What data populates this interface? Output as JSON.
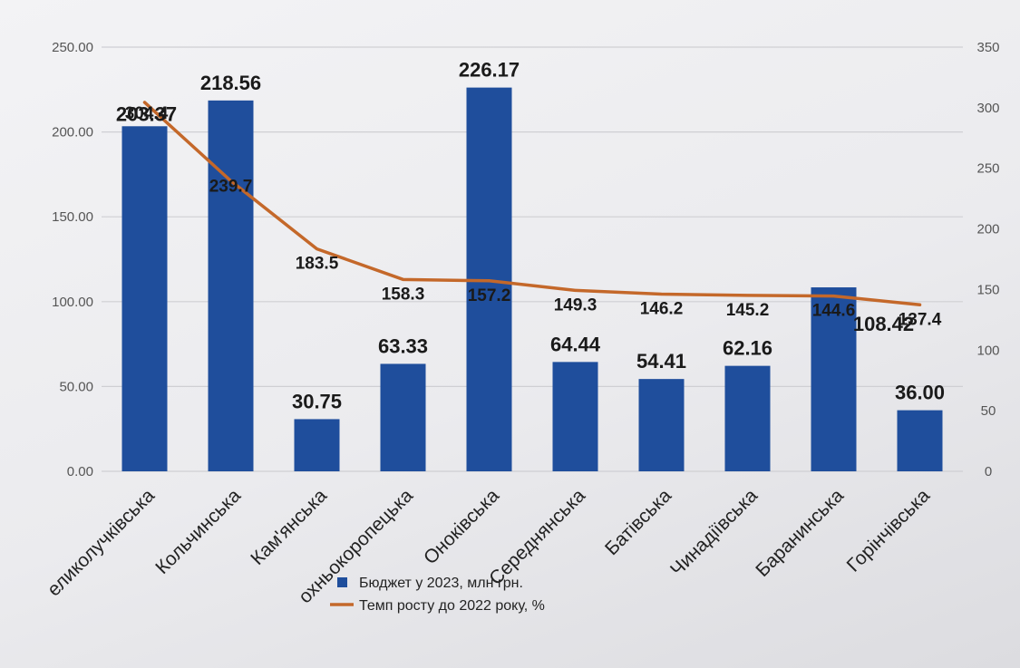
{
  "chart_data": {
    "type": "bar",
    "categories": [
      "Великолучківська",
      "Кольчинська",
      "Кам'янська",
      "Верхньокоропецька",
      "Оноківська",
      "Середнянська",
      "Батівська",
      "Чинадіївська",
      "Баранинська",
      "Горінчівська"
    ],
    "category_labels_shown": [
      "еликолучківська",
      "Кольчинська",
      "Кам'янська",
      "охньокоропецька",
      "Оноківська",
      "Середнянська",
      "Батівська",
      "Чинадіївська",
      "Баранинська",
      "Горінчівська"
    ],
    "series": [
      {
        "name": "Бюджет у 2023, млн грн.",
        "type": "bar",
        "axis": "left",
        "values": [
          203.37,
          218.56,
          30.75,
          63.33,
          226.17,
          64.44,
          54.41,
          62.16,
          108.42,
          36.0
        ],
        "value_labels": [
          "203.37",
          "218.56",
          "30.75",
          "63.33",
          "226.17",
          "64.44",
          "54.41",
          "62.16",
          "108.42",
          "36.00"
        ],
        "color": "#1f4e9c"
      },
      {
        "name": "Темп росту до 2022 року, %",
        "type": "line",
        "axis": "right",
        "values": [
          304.4,
          239.7,
          183.5,
          158.3,
          157.2,
          149.3,
          146.2,
          145.2,
          144.6,
          137.4
        ],
        "value_labels": [
          "304.4",
          "239.7",
          "183.5",
          "158.3",
          "157.2",
          "149.3",
          "146.2",
          "145.2",
          "144.6",
          "137.4"
        ],
        "color": "#c4682a"
      }
    ],
    "y_left": {
      "lim": [
        0,
        250
      ],
      "ticks": [
        "0.00",
        "50.00",
        "100.00",
        "150.00",
        "200.00",
        "250.00"
      ]
    },
    "y_right": {
      "lim": [
        0,
        350
      ],
      "ticks": [
        "0",
        "50",
        "100",
        "150",
        "200",
        "250",
        "300",
        "350"
      ]
    },
    "grid": true,
    "legend_position": "bottom-center",
    "legend": [
      {
        "label": "Бюджет у 2023, млн грн.",
        "color": "#1f4e9c",
        "marker": "square"
      },
      {
        "label": "Темп росту до 2022 року, %",
        "color": "#c4682a",
        "marker": "line"
      }
    ]
  }
}
